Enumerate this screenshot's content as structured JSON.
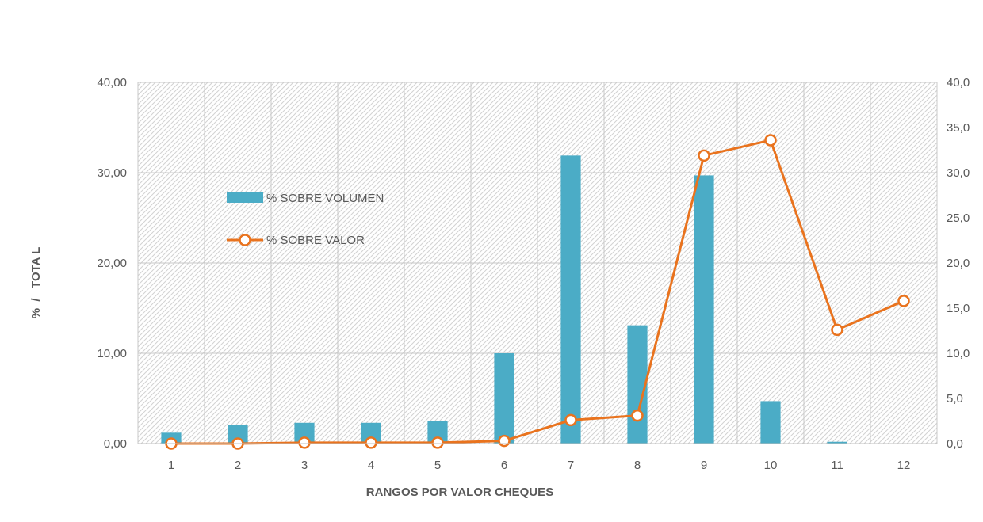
{
  "chart_data": {
    "type": "bar",
    "categories": [
      "1",
      "2",
      "3",
      "4",
      "5",
      "6",
      "7",
      "8",
      "9",
      "10",
      "11",
      "12"
    ],
    "series": [
      {
        "name": "% SOBRE VOLUMEN",
        "type": "bar",
        "axis": "left",
        "values": [
          1.2,
          2.1,
          2.3,
          2.3,
          2.5,
          10.0,
          31.9,
          13.1,
          29.7,
          4.7,
          0.2,
          0.0
        ]
      },
      {
        "name": "% SOBRE VALOR",
        "type": "line",
        "axis": "right",
        "values": [
          0.0,
          0.0,
          0.1,
          0.1,
          0.1,
          0.3,
          2.6,
          3.1,
          31.9,
          33.6,
          12.6,
          15.8
        ]
      }
    ],
    "title": "",
    "xlabel": "RANGOS POR VALOR CHEQUES",
    "ylabel": "%  /   TOTA L",
    "ylim": [
      0,
      40
    ],
    "y2lim": [
      0,
      40
    ],
    "yticks_left": [
      "0,00",
      "10,00",
      "20,00",
      "30,00",
      "40,00"
    ],
    "yticks_right": [
      "0,0",
      "5,0",
      "10,0",
      "15,0",
      "20,0",
      "25,0",
      "30,0",
      "35,0",
      "40,0"
    ],
    "grid": true,
    "legend_position": "upper-left inside plot",
    "colors": {
      "bars": "#4bacc6",
      "line": "#e9731e",
      "marker_fill": "#ffffff",
      "grid": "#c8c8c8",
      "hatch": "#d4d4d4",
      "axis_text": "#595959"
    }
  }
}
